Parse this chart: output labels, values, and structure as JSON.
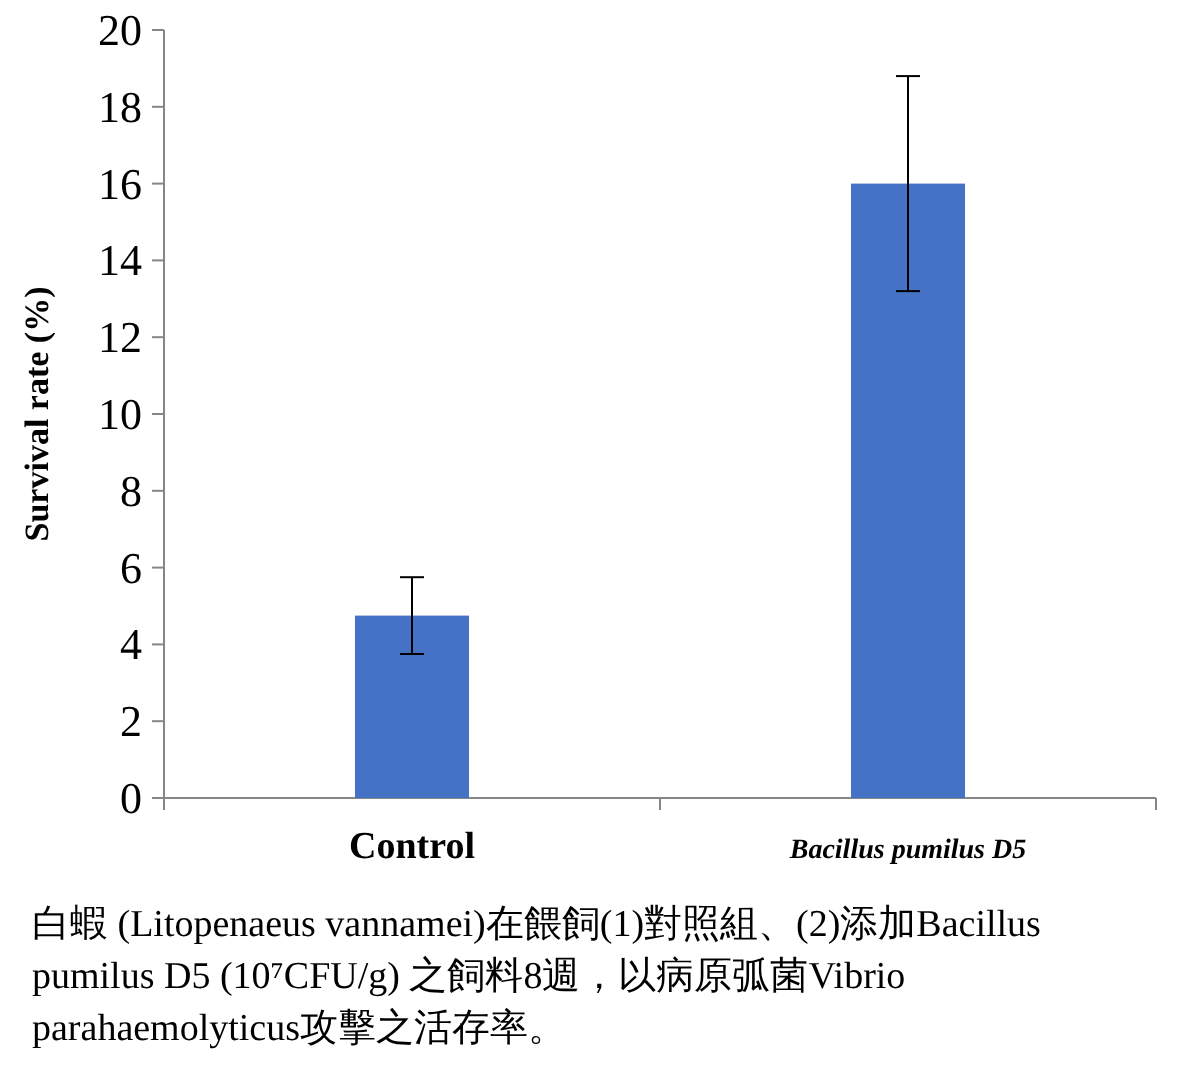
{
  "chart_data": {
    "type": "bar",
    "categories": [
      "Control",
      "Bacillus pumilus D5"
    ],
    "values": [
      4.75,
      16
    ],
    "errors": [
      1,
      2.8
    ],
    "color": "#4472c4",
    "ylabel": "Survival rate (%)",
    "ylim": [
      0,
      20
    ],
    "yticks": [
      0,
      2,
      4,
      6,
      8,
      10,
      12,
      14,
      16,
      18,
      20
    ],
    "annotations": [
      "白蝦 (Litopenaeus vannamei)在餵飼(1)對照組、(2)添加Bacillus pumilus D5 (10⁷CFU/g) 之飼料8週，以病原弧菌Vibrio parahaemolyticus攻擊之活存率。"
    ]
  }
}
